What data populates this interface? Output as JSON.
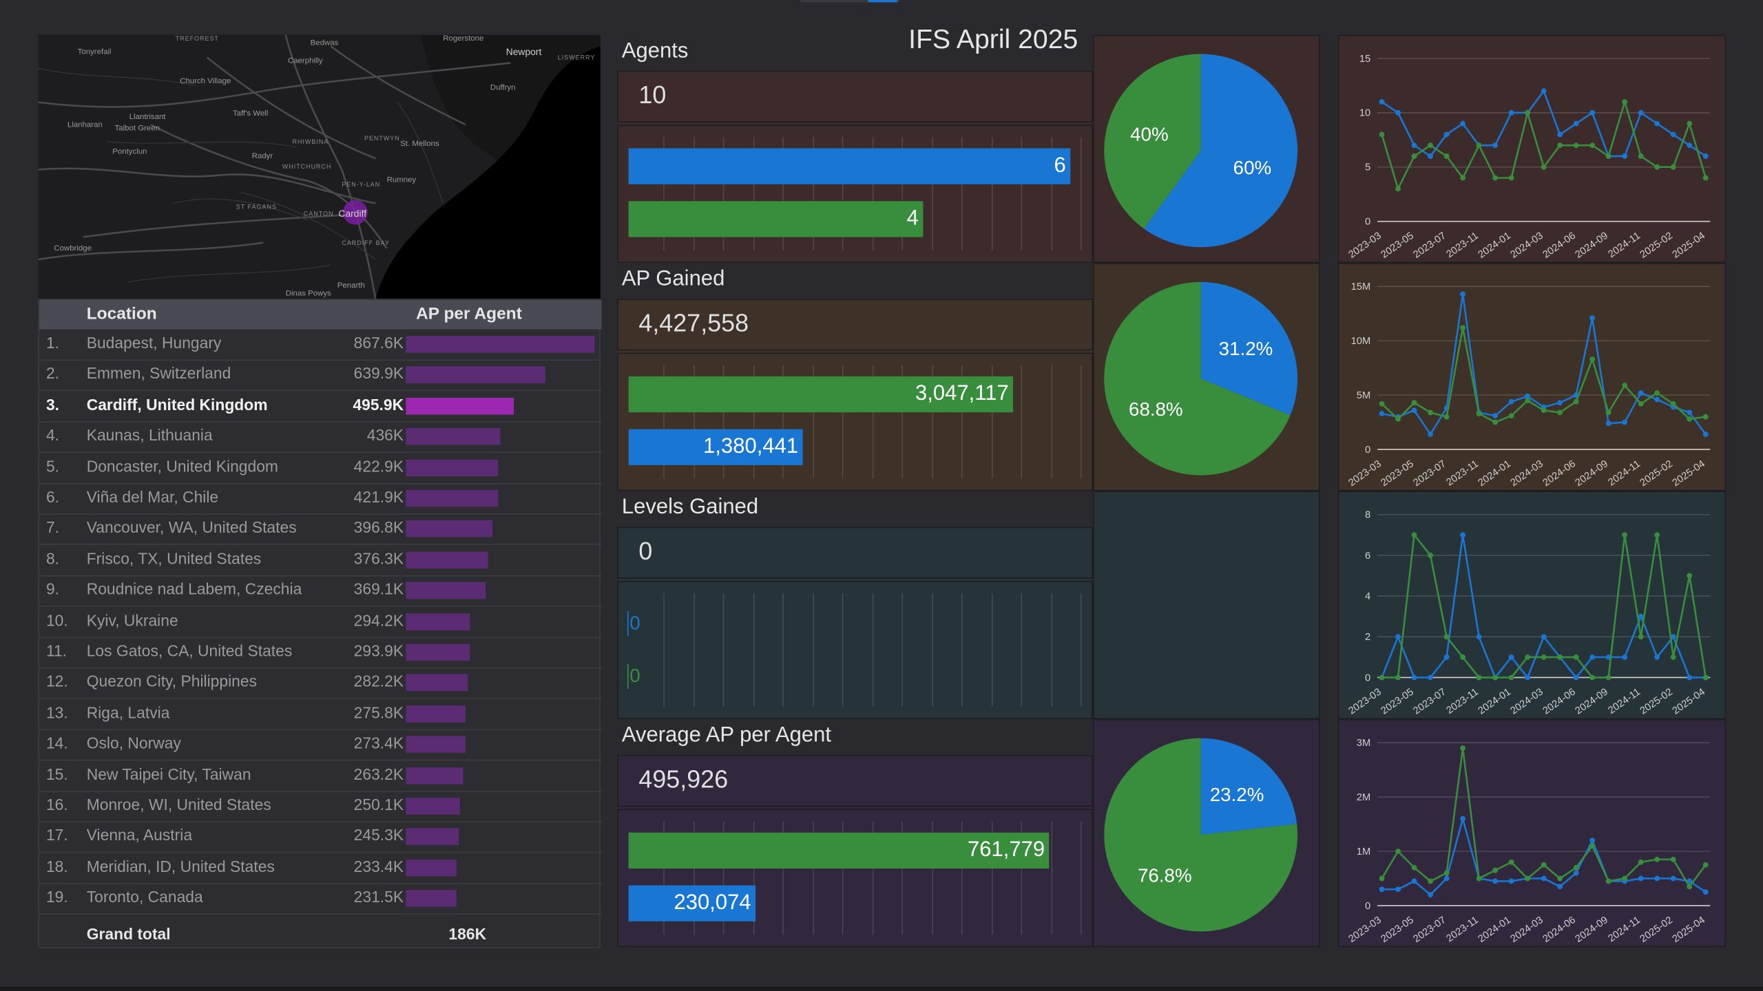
{
  "title": "IFS April 2025",
  "map": {
    "labels": {
      "treforest": "TREFOREST",
      "bedwas": "Bedwas",
      "rogerstone": "Rogerstone",
      "newport": "Newport",
      "tonyrefail": "Tonyrefail",
      "caerphilly": "Caerphilly",
      "liswerry": "LISWERRY",
      "church_village": "Church Village",
      "duffryn": "Duffryn",
      "llanharan": "Llanharan",
      "llantrisant": "Llantrisant",
      "talbot_green": "Talbot Green",
      "taffs_well": "Taff's Well",
      "pentwyn": "PENTWYN",
      "rhiwbina": "RHIWBINA",
      "st_mellons": "St. Mellons",
      "pontyclun": "Pontyclun",
      "radyr": "Radyr",
      "whitchurch": "WHITCHURCH",
      "pen_y_lan": "PEN-Y-LAN",
      "rumney": "Rumney",
      "st_fagans": "ST FAGANS",
      "canton": "CANTON",
      "cardiff": "Cardiff",
      "cardiff_bay": "CARDIFF BAY",
      "cowbridge": "Cowbridge",
      "penarth": "Penarth",
      "dinas_powys": "Dinas Powys"
    }
  },
  "table": {
    "headers": {
      "location": "Location",
      "ap_per_agent": "AP per Agent"
    },
    "rows": [
      {
        "rank": "1.",
        "location": "Budapest, Hungary",
        "value": "867.6K",
        "amount": 867.6
      },
      {
        "rank": "2.",
        "location": "Emmen, Switzerland",
        "value": "639.9K",
        "amount": 639.9
      },
      {
        "rank": "3.",
        "location": "Cardiff, United Kingdom",
        "value": "495.9K",
        "amount": 495.9,
        "highlight": true
      },
      {
        "rank": "4.",
        "location": "Kaunas, Lithuania",
        "value": "436K",
        "amount": 436
      },
      {
        "rank": "5.",
        "location": "Doncaster, United Kingdom",
        "value": "422.9K",
        "amount": 422.9
      },
      {
        "rank": "6.",
        "location": "Viña del Mar, Chile",
        "value": "421.9K",
        "amount": 421.9
      },
      {
        "rank": "7.",
        "location": "Vancouver, WA, United States",
        "value": "396.8K",
        "amount": 396.8
      },
      {
        "rank": "8.",
        "location": "Frisco, TX, United States",
        "value": "376.3K",
        "amount": 376.3
      },
      {
        "rank": "9.",
        "location": "Roudnice nad Labem, Czechia",
        "value": "369.1K",
        "amount": 369.1
      },
      {
        "rank": "10.",
        "location": "Kyiv, Ukraine",
        "value": "294.2K",
        "amount": 294.2
      },
      {
        "rank": "11.",
        "location": "Los Gatos, CA, United States",
        "value": "293.9K",
        "amount": 293.9
      },
      {
        "rank": "12.",
        "location": "Quezon City, Philippines",
        "value": "282.2K",
        "amount": 282.2
      },
      {
        "rank": "13.",
        "location": "Riga, Latvia",
        "value": "275.8K",
        "amount": 275.8
      },
      {
        "rank": "14.",
        "location": "Oslo, Norway",
        "value": "273.4K",
        "amount": 273.4
      },
      {
        "rank": "15.",
        "location": "New Taipei City, Taiwan",
        "value": "263.2K",
        "amount": 263.2
      },
      {
        "rank": "16.",
        "location": "Monroe, WI, United States",
        "value": "250.1K",
        "amount": 250.1
      },
      {
        "rank": "17.",
        "location": "Vienna, Austria",
        "value": "245.3K",
        "amount": 245.3
      },
      {
        "rank": "18.",
        "location": "Meridian, ID, United States",
        "value": "233.4K",
        "amount": 233.4
      },
      {
        "rank": "19.",
        "location": "Toronto, Canada",
        "value": "231.5K",
        "amount": 231.5
      }
    ],
    "footer": {
      "label": "Grand total",
      "total": "186K"
    }
  },
  "colors": {
    "blue": "#1976d2",
    "green": "#388e3c",
    "purple": "#9c27b0",
    "dim_purple": "#5b2c74"
  },
  "sections": [
    {
      "title": "Agents",
      "value": "10",
      "bg": "#3d2b2b",
      "pie_bg": "#3d2b2b",
      "bars": [
        {
          "color": "blue",
          "amount": 6,
          "label": "6"
        },
        {
          "color": "green",
          "amount": 4,
          "label": "4"
        }
      ],
      "bar_max": 6,
      "pie": [
        {
          "color": "blue",
          "value": 60,
          "label": "60%"
        },
        {
          "color": "green",
          "value": 40,
          "label": "40%"
        }
      ]
    },
    {
      "title": "AP Gained",
      "value": "4,427,558",
      "bg": "#3d3128",
      "pie_bg": "#3d3128",
      "bars": [
        {
          "color": "green",
          "amount": 3047117,
          "label": "3,047,117"
        },
        {
          "color": "blue",
          "amount": 1380441,
          "label": "1,380,441"
        }
      ],
      "bar_max": 3500000,
      "pie": [
        {
          "color": "blue",
          "value": 31.2,
          "label": "31.2%"
        },
        {
          "color": "green",
          "value": 68.8,
          "label": "68.8%"
        }
      ]
    },
    {
      "title": "Levels Gained",
      "value": "0",
      "bg": "#26343a",
      "pie_bg": "#26343a",
      "bars": [
        {
          "color": "blue",
          "amount": 0,
          "label": "0"
        },
        {
          "color": "green",
          "amount": 0,
          "label": "0"
        }
      ],
      "bar_max": 1,
      "pie": []
    },
    {
      "title": "Average AP per Agent",
      "value": "495,926",
      "bg": "#31283d",
      "pie_bg": "#31283d",
      "bars": [
        {
          "color": "green",
          "amount": 761779,
          "label": "761,779"
        },
        {
          "color": "blue",
          "amount": 230074,
          "label": "230,074"
        }
      ],
      "bar_max": 800000,
      "pie": [
        {
          "color": "blue",
          "value": 23.2,
          "label": "23.2%"
        },
        {
          "color": "green",
          "value": 76.8,
          "label": "76.8%"
        }
      ]
    }
  ],
  "chart_data": [
    {
      "type": "line",
      "x": [
        "2023-03",
        "2023-04",
        "2023-05",
        "2023-06",
        "2023-07",
        "2023-08",
        "2023-11",
        "2023-12",
        "2024-01",
        "2024-02",
        "2024-03",
        "2024-04",
        "2024-06",
        "2024-07",
        "2024-09",
        "2024-10",
        "2024-11",
        "2024-12",
        "2025-02",
        "2025-03",
        "2025-04"
      ],
      "tick_labels": [
        "2023-03",
        "2023-05",
        "2023-07",
        "2023-11",
        "2024-01",
        "2024-03",
        "2024-06",
        "2024-09",
        "2024-11",
        "2025-02",
        "2025-04"
      ],
      "yticks": [
        "0",
        "5",
        "10",
        "15"
      ],
      "ylim": [
        0,
        15
      ],
      "series": [
        {
          "color": "blue",
          "values": [
            11,
            10,
            7,
            6,
            8,
            9,
            7,
            7,
            10,
            10,
            12,
            8,
            9,
            10,
            6,
            6,
            10,
            9,
            8,
            7,
            6
          ]
        },
        {
          "color": "green",
          "values": [
            8,
            3,
            6,
            7,
            6,
            4,
            7,
            4,
            4,
            10,
            5,
            7,
            7,
            7,
            6,
            11,
            6,
            5,
            5,
            9,
            4
          ]
        }
      ],
      "bg": "#3d2b2b"
    },
    {
      "type": "line",
      "x": [
        "2023-03",
        "2023-04",
        "2023-05",
        "2023-06",
        "2023-07",
        "2023-08",
        "2023-11",
        "2023-12",
        "2024-01",
        "2024-02",
        "2024-03",
        "2024-04",
        "2024-06",
        "2024-07",
        "2024-09",
        "2024-10",
        "2024-11",
        "2024-12",
        "2025-02",
        "2025-03",
        "2025-04"
      ],
      "tick_labels": [
        "2023-03",
        "2023-05",
        "2023-07",
        "2023-11",
        "2024-01",
        "2024-03",
        "2024-06",
        "2024-09",
        "2024-11",
        "2025-02",
        "2025-04"
      ],
      "yticks": [
        "0",
        "5M",
        "10M",
        "15M"
      ],
      "ylim": [
        0,
        15
      ],
      "series": [
        {
          "color": "blue",
          "values": [
            3.3,
            3.0,
            3.6,
            1.4,
            3.8,
            14.3,
            3.4,
            3.1,
            4.4,
            4.9,
            3.9,
            4.3,
            5.0,
            12.1,
            2.4,
            2.5,
            5.2,
            4.6,
            3.9,
            3.4,
            1.4
          ]
        },
        {
          "color": "green",
          "values": [
            4.2,
            2.8,
            4.3,
            3.4,
            3.0,
            11.2,
            3.3,
            2.5,
            3.1,
            4.5,
            3.6,
            3.4,
            4.4,
            8.3,
            3.4,
            5.9,
            4.2,
            5.2,
            4.2,
            2.8,
            3.0
          ]
        }
      ],
      "bg": "#3d3128"
    },
    {
      "type": "line",
      "x": [
        "2023-03",
        "2023-04",
        "2023-05",
        "2023-06",
        "2023-07",
        "2023-08",
        "2023-11",
        "2023-12",
        "2024-01",
        "2024-02",
        "2024-03",
        "2024-04",
        "2024-06",
        "2024-07",
        "2024-09",
        "2024-10",
        "2024-11",
        "2024-12",
        "2025-02",
        "2025-03",
        "2025-04"
      ],
      "tick_labels": [
        "2023-03",
        "2023-05",
        "2023-07",
        "2023-11",
        "2024-01",
        "2024-03",
        "2024-06",
        "2024-09",
        "2024-11",
        "2025-02",
        "2025-04"
      ],
      "yticks": [
        "0",
        "2",
        "4",
        "6",
        "8"
      ],
      "ylim": [
        0,
        8
      ],
      "series": [
        {
          "color": "blue",
          "values": [
            0,
            2,
            0,
            0,
            1,
            7,
            2,
            0,
            1,
            0,
            2,
            1,
            0,
            1,
            1,
            1,
            3,
            1,
            2,
            0,
            0
          ]
        },
        {
          "color": "green",
          "values": [
            0,
            0,
            7,
            6,
            2,
            1,
            0,
            0,
            0,
            1,
            1,
            1,
            1,
            0,
            0,
            7,
            2,
            7,
            1,
            5,
            0
          ]
        }
      ],
      "bg": "#26343a"
    },
    {
      "type": "line",
      "x": [
        "2023-03",
        "2023-04",
        "2023-05",
        "2023-06",
        "2023-07",
        "2023-08",
        "2023-11",
        "2023-12",
        "2024-01",
        "2024-02",
        "2024-03",
        "2024-04",
        "2024-06",
        "2024-07",
        "2024-09",
        "2024-10",
        "2024-11",
        "2024-12",
        "2025-02",
        "2025-03",
        "2025-04"
      ],
      "tick_labels": [
        "2023-03",
        "2023-05",
        "2023-07",
        "2023-11",
        "2024-01",
        "2024-03",
        "2024-06",
        "2024-09",
        "2024-11",
        "2025-02",
        "2025-04"
      ],
      "yticks": [
        "0",
        "1M",
        "2M",
        "3M"
      ],
      "ylim": [
        0,
        3
      ],
      "series": [
        {
          "color": "blue",
          "values": [
            0.3,
            0.3,
            0.45,
            0.2,
            0.5,
            1.6,
            0.5,
            0.45,
            0.45,
            0.5,
            0.5,
            0.35,
            0.6,
            1.2,
            0.45,
            0.45,
            0.5,
            0.5,
            0.5,
            0.45,
            0.25
          ]
        },
        {
          "color": "green",
          "values": [
            0.5,
            1.0,
            0.7,
            0.45,
            0.6,
            2.9,
            0.5,
            0.65,
            0.8,
            0.5,
            0.75,
            0.5,
            0.7,
            1.1,
            0.45,
            0.5,
            0.8,
            0.85,
            0.85,
            0.35,
            0.75
          ]
        }
      ],
      "bg": "#31283d"
    }
  ]
}
